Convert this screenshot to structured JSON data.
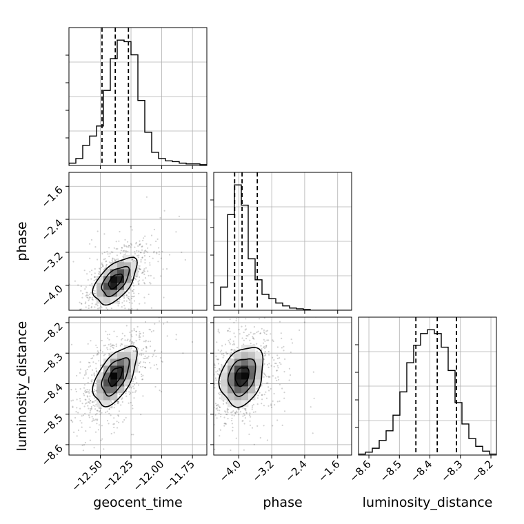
{
  "chart_data": {
    "type": "corner",
    "grid": true,
    "parameters": [
      "geocent_time",
      "phase",
      "luminosity_distance"
    ],
    "axis_labels": {
      "x": [
        "geocent_time",
        "phase",
        "luminosity_distance"
      ],
      "y": [
        "",
        "phase",
        "luminosity_distance"
      ]
    },
    "ranges": {
      "geocent_time": [
        -12.755,
        -11.633
      ],
      "phase": [
        -4.607,
        -1.261
      ],
      "luminosity_distance": [
        -8.634,
        -8.182
      ]
    },
    "ticks": {
      "geocent_time": [
        -12.5,
        -12.25,
        -12.0,
        -11.75
      ],
      "geocent_time_labels": [
        "−12.50",
        "−12.25",
        "−12.00",
        "−11.75"
      ],
      "phase": [
        -4.0,
        -3.2,
        -2.4,
        -1.6
      ],
      "phase_labels": [
        "−4.0",
        "−3.2",
        "−2.4",
        "−1.6"
      ],
      "luminosity_distance": [
        -8.6,
        -8.5,
        -8.4,
        -8.3,
        -8.2
      ],
      "luminosity_distance_labels": [
        "−8.6",
        "−8.5",
        "−8.4",
        "−8.3",
        "−8.2"
      ]
    },
    "histograms": {
      "geocent_time": {
        "bins": 20,
        "counts": [
          0.03,
          0.09,
          0.26,
          0.38,
          0.51,
          0.97,
          1.38,
          1.62,
          1.6,
          1.43,
          0.84,
          0.43,
          0.17,
          0.09,
          0.06,
          0.05,
          0.03,
          0.02,
          0.02,
          0.01
        ],
        "quantiles": [
          -12.486,
          -12.378,
          -12.271
        ]
      },
      "phase": {
        "bins": 20,
        "counts": [
          0.07,
          0.32,
          1.32,
          1.73,
          1.45,
          0.71,
          0.42,
          0.22,
          0.16,
          0.1,
          0.06,
          0.03,
          0.02,
          0.01,
          0.0,
          0.0,
          0.0,
          0.0,
          0.0,
          0.0
        ],
        "quantiles": [
          -4.1,
          -3.92,
          -3.55
        ]
      },
      "luminosity_distance": {
        "bins": 20,
        "counts": [
          0.01,
          0.03,
          0.07,
          0.15,
          0.25,
          0.41,
          0.65,
          0.95,
          1.13,
          1.25,
          1.29,
          1.25,
          1.11,
          0.87,
          0.54,
          0.32,
          0.17,
          0.09,
          0.04,
          0.01
        ],
        "quantiles": [
          -8.446,
          -8.376,
          -8.313
        ]
      }
    },
    "joint": [
      {
        "x": "geocent_time",
        "y": "phase",
        "mean": [
          -12.378,
          -3.9
        ],
        "std": [
          0.1,
          0.32
        ],
        "correlation": 0.55
      },
      {
        "x": "geocent_time",
        "y": "luminosity_distance",
        "mean": [
          -12.378,
          -8.376
        ],
        "std": [
          0.1,
          0.055
        ],
        "correlation": 0.55
      },
      {
        "x": "phase",
        "y": "luminosity_distance",
        "mean": [
          -3.92,
          -8.376
        ],
        "std": [
          0.3,
          0.055
        ],
        "correlation": 0.25
      }
    ]
  }
}
